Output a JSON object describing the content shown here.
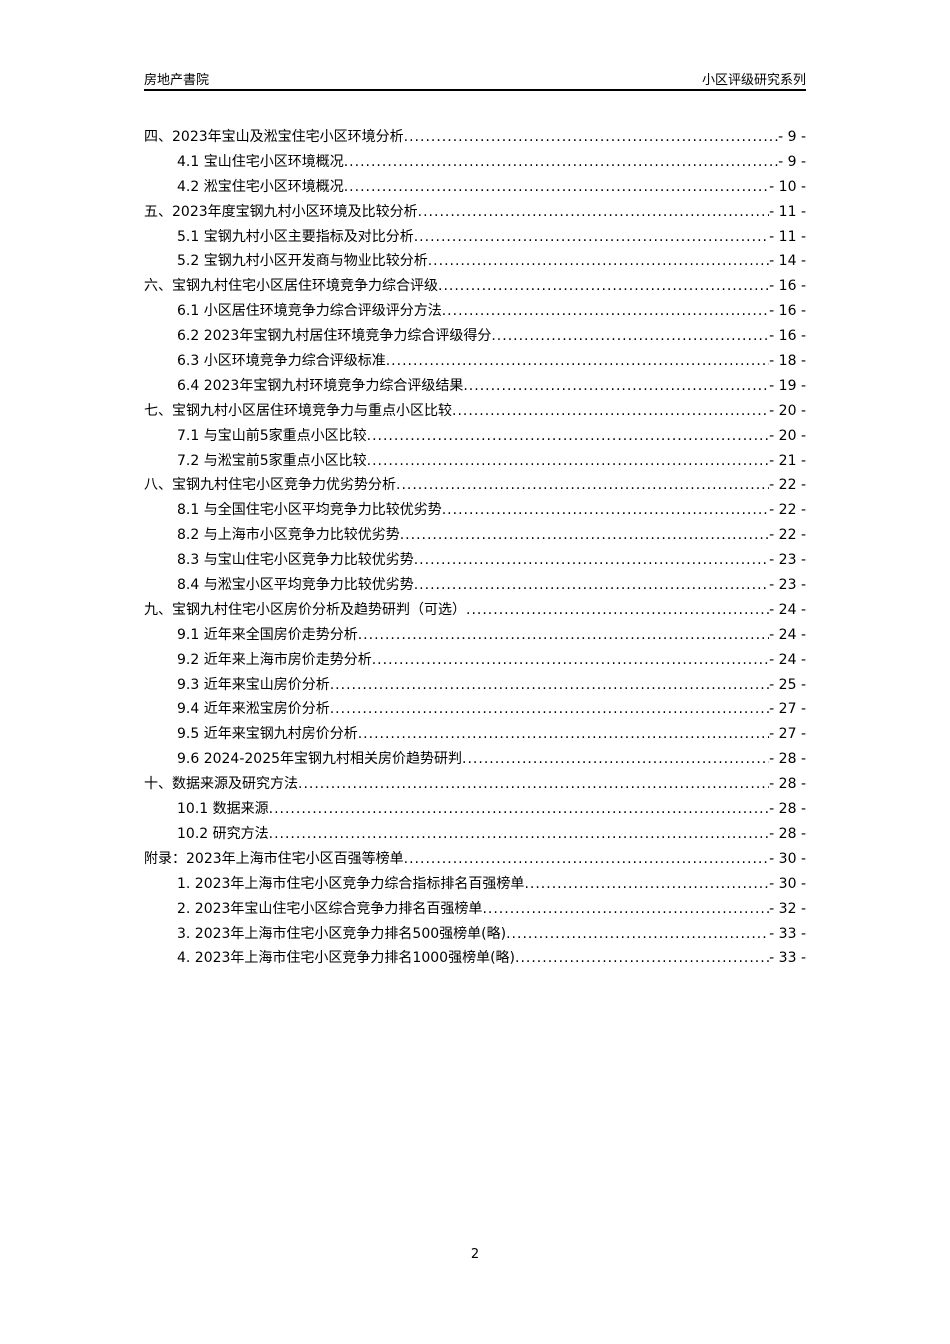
{
  "header": {
    "left": "房地产書院",
    "right": "小区评级研究系列"
  },
  "toc": [
    {
      "level": 1,
      "title": "四、2023年宝山及淞宝住宅小区环境分析",
      "page": "- 9 -"
    },
    {
      "level": 2,
      "title": "4.1 宝山住宅小区环境概况",
      "page": "- 9 -"
    },
    {
      "level": 2,
      "title": "4.2 淞宝住宅小区环境概况",
      "page": "- 10 -"
    },
    {
      "level": 1,
      "title": "五、2023年度宝钢九村小区环境及比较分析",
      "page": "- 11 -"
    },
    {
      "level": 2,
      "title": "5.1 宝钢九村小区主要指标及对比分析",
      "page": "- 11 -"
    },
    {
      "level": 2,
      "title": "5.2 宝钢九村小区开发商与物业比较分析",
      "page": "- 14 -"
    },
    {
      "level": 1,
      "title": "六、宝钢九村住宅小区居住环境竞争力综合评级",
      "page": "- 16 -"
    },
    {
      "level": 2,
      "title": "6.1 小区居住环境竞争力综合评级评分方法",
      "page": "- 16 -"
    },
    {
      "level": 2,
      "title": "6.2 2023年宝钢九村居住环境竞争力综合评级得分",
      "page": "- 16 -"
    },
    {
      "level": 2,
      "title": "6.3 小区环境竞争力综合评级标准",
      "page": "- 18 -"
    },
    {
      "level": 2,
      "title": "6.4 2023年宝钢九村环境竞争力综合评级结果",
      "page": "- 19 -"
    },
    {
      "level": 1,
      "title": "七、宝钢九村小区居住环境竞争力与重点小区比较",
      "page": "- 20 -"
    },
    {
      "level": 2,
      "title": "7.1 与宝山前5家重点小区比较",
      "page": "- 20 -"
    },
    {
      "level": 2,
      "title": "7.2 与淞宝前5家重点小区比较",
      "page": "- 21 -"
    },
    {
      "level": 1,
      "title": "八、宝钢九村住宅小区竞争力优劣势分析",
      "page": "- 22 -"
    },
    {
      "level": 2,
      "title": "8.1 与全国住宅小区平均竞争力比较优劣势",
      "page": "- 22 -"
    },
    {
      "level": 2,
      "title": "8.2 与上海市小区竞争力比较优劣势",
      "page": "- 22 -"
    },
    {
      "level": 2,
      "title": "8.3 与宝山住宅小区竞争力比较优劣势",
      "page": "- 23 -"
    },
    {
      "level": 2,
      "title": "8.4 与淞宝小区平均竞争力比较优劣势",
      "page": "- 23 -"
    },
    {
      "level": 1,
      "title": "九、宝钢九村住宅小区房价分析及趋势研判（可选）",
      "page": "- 24 -"
    },
    {
      "level": 2,
      "title": "9.1 近年来全国房价走势分析",
      "page": "- 24 -"
    },
    {
      "level": 2,
      "title": "9.2 近年来上海市房价走势分析",
      "page": "- 24 -"
    },
    {
      "level": 2,
      "title": "9.3 近年来宝山房价分析",
      "page": "- 25 -"
    },
    {
      "level": 2,
      "title": "9.4 近年来淞宝房价分析",
      "page": "- 27 -"
    },
    {
      "level": 2,
      "title": "9.5 近年来宝钢九村房价分析",
      "page": "- 27 -"
    },
    {
      "level": 2,
      "title": "9.6 2024-2025年宝钢九村相关房价趋势研判",
      "page": "- 28 -"
    },
    {
      "level": 1,
      "title": "十、数据来源及研究方法",
      "page": "- 28 -"
    },
    {
      "level": 2,
      "title": "10.1 数据来源",
      "page": "- 28 -"
    },
    {
      "level": 2,
      "title": "10.2 研究方法",
      "page": "- 28 -"
    },
    {
      "level": 1,
      "title": "附录：2023年上海市住宅小区百强等榜单",
      "page": "- 30 -"
    },
    {
      "level": 2,
      "title": "1. 2023年上海市住宅小区竞争力综合指标排名百强榜单",
      "page": "- 30 -"
    },
    {
      "level": 2,
      "title": "2. 2023年宝山住宅小区综合竞争力排名百强榜单",
      "page": "- 32 -"
    },
    {
      "level": 2,
      "title": "3. 2023年上海市住宅小区竞争力排名500强榜单(略)",
      "page": "- 33 -"
    },
    {
      "level": 2,
      "title": "4. 2023年上海市住宅小区竞争力排名1000强榜单(略)",
      "page": "- 33 -"
    }
  ],
  "footer": {
    "page_number": "2"
  }
}
